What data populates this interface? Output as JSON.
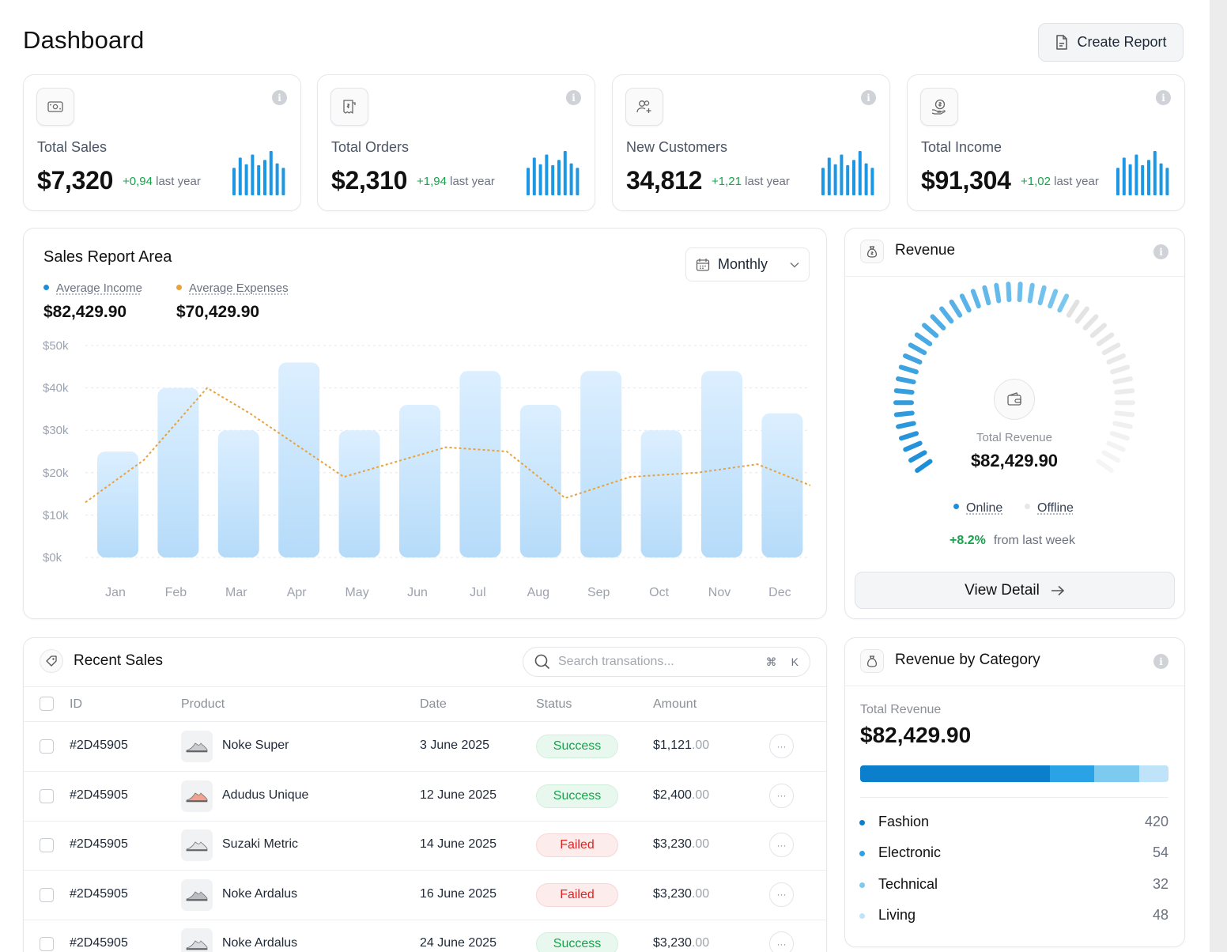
{
  "page": {
    "title": "Dashboard",
    "create_report_label": "Create Report"
  },
  "stats": [
    {
      "label": "Total Sales",
      "value": "$7,320",
      "delta": "+0,94",
      "delta_suffix": "last year",
      "icon": "cash-icon"
    },
    {
      "label": "Total Orders",
      "value": "$2,310",
      "delta": "+1,94",
      "delta_suffix": "last year",
      "icon": "receipt-icon"
    },
    {
      "label": "New Customers",
      "value": "34,812",
      "delta": "+1,21",
      "delta_suffix": "last year",
      "icon": "users-add-icon"
    },
    {
      "label": "Total Income",
      "value": "$91,304",
      "delta": "+1,02",
      "delta_suffix": "last year",
      "icon": "coin-hand-icon"
    }
  ],
  "sales_report": {
    "title": "Sales Report Area",
    "period_label": "Monthly",
    "legend": [
      {
        "label": "Average Income",
        "value": "$82,429.90",
        "color": "#1d8fd8"
      },
      {
        "label": "Average Expenses",
        "value": "$70,429.90",
        "color": "#e8a23a"
      }
    ]
  },
  "chart_data": {
    "type": "bar",
    "title": "Sales Report Area",
    "categories": [
      "Jan",
      "Feb",
      "Mar",
      "Apr",
      "May",
      "Jun",
      "Jul",
      "Aug",
      "Sep",
      "Oct",
      "Nov",
      "Dec"
    ],
    "series": [
      {
        "name": "Average Income",
        "type": "bar",
        "values": [
          25,
          40,
          30,
          46,
          30,
          36,
          44,
          36,
          44,
          30,
          44,
          34
        ]
      },
      {
        "name": "Average Expenses",
        "type": "line",
        "values": [
          13,
          23,
          40,
          34,
          19,
          26,
          25,
          14,
          19,
          20,
          22,
          17
        ]
      }
    ],
    "yticks": [
      "$50k",
      "$40k",
      "$30k",
      "$20k",
      "$10k",
      "$0k"
    ],
    "ylim": [
      0,
      50
    ],
    "xlabel": "",
    "ylabel": ""
  },
  "revenue": {
    "title": "Revenue",
    "center_label": "Total Revenue",
    "center_value": "$82,429.90",
    "legend_online": "Online",
    "legend_offline": "Offline",
    "change": "+8.2%",
    "change_suffix": "from last week",
    "view_detail_label": "View Detail",
    "online_fraction": 0.62
  },
  "recent_sales": {
    "title": "Recent Sales",
    "search_placeholder": "Search transations...",
    "shortcut_cmd": "⌘",
    "shortcut_key": "K",
    "columns": [
      "ID",
      "Product",
      "Date",
      "Status",
      "Amount"
    ],
    "rows": [
      {
        "id": "#2D45905",
        "product": "Noke Super",
        "date": "3 June 2025",
        "status": "Success",
        "amount": "$1,121",
        "cents": ".00"
      },
      {
        "id": "#2D45905",
        "product": "Adudus Unique",
        "date": "12 June 2025",
        "status": "Success",
        "amount": "$2,400",
        "cents": ".00"
      },
      {
        "id": "#2D45905",
        "product": "Suzaki Metric",
        "date": "14 June 2025",
        "status": "Failed",
        "amount": "$3,230",
        "cents": ".00"
      },
      {
        "id": "#2D45905",
        "product": "Noke Ardalus",
        "date": "16 June 2025",
        "status": "Failed",
        "amount": "$3,230",
        "cents": ".00"
      },
      {
        "id": "#2D45905",
        "product": "Noke Ardalus",
        "date": "24 June 2025",
        "status": "Success",
        "amount": "$3,230",
        "cents": ".00"
      }
    ]
  },
  "revenue_by_category": {
    "title": "Revenue by Category",
    "total_label": "Total Revenue",
    "total_value": "$82,429.90",
    "categories": [
      {
        "label": "Fashion",
        "value": "420",
        "color": "#0b7fcc"
      },
      {
        "label": "Electronic",
        "value": "54",
        "color": "#2aa3e6"
      },
      {
        "label": "Technical",
        "value": "32",
        "color": "#7ccaf0"
      },
      {
        "label": "Living",
        "value": "48",
        "color": "#bfe3f8"
      }
    ]
  }
}
